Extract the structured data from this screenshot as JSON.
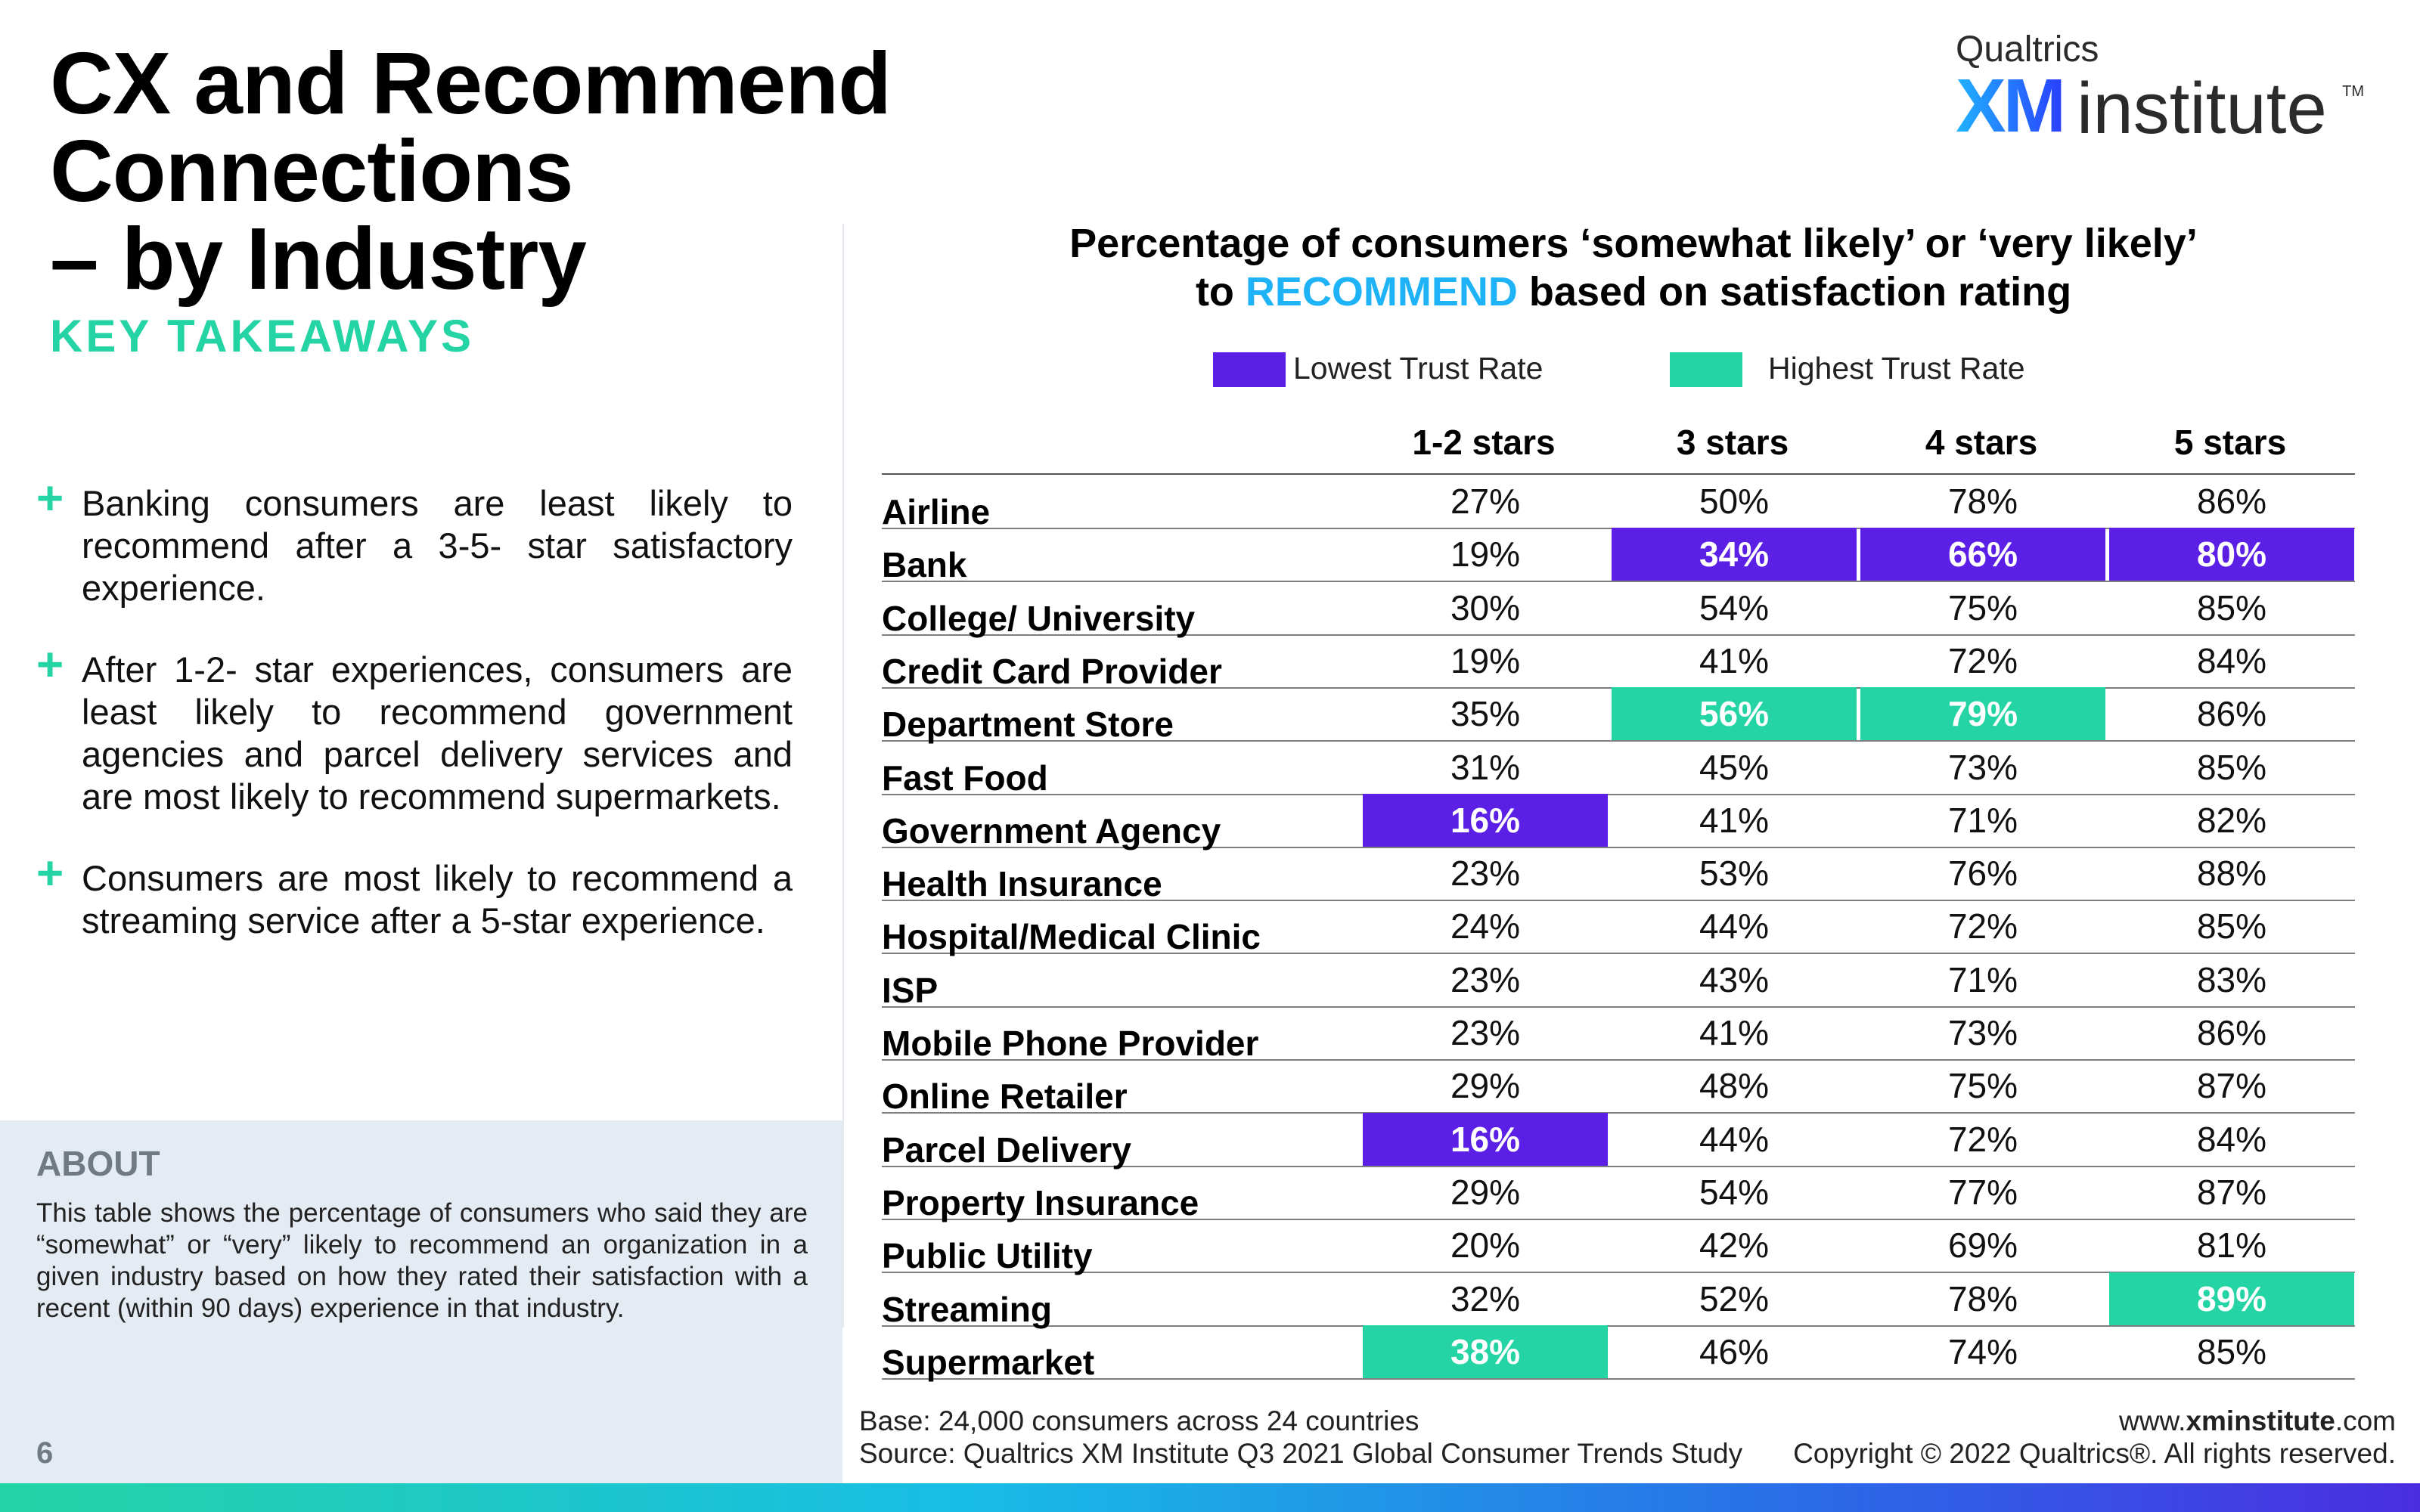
{
  "title": {
    "line1": "CX and Recommend Connections",
    "line2": "– by Industry"
  },
  "logo": {
    "top": "Qualtrics",
    "xm": "XM",
    "institute": "institute",
    "tm": "TM"
  },
  "key_takeaways": {
    "heading": "KEY TAKEAWAYS",
    "items": [
      "Banking consumers are least likely to recommend after a 3-5- star satisfactory experience.",
      "After 1-2- star experiences, consumers are least likely to recommend government agencies and parcel delivery services and are most likely to recommend supermarkets.",
      "Consumers are most likely to recommend a streaming service after a 5-star experience."
    ]
  },
  "about": {
    "heading": "ABOUT",
    "text": "This table shows the percentage of consumers who said they are “somewhat” or “very” likely to recommend an organization in a given industry based on how they rated their satisfaction with a recent (within 90 days) experience in that industry."
  },
  "page_number": "6",
  "colors": {
    "lowest": "#5b1fe6",
    "highest": "#24d4a4",
    "accent": "#1eb3f6"
  },
  "chart_data": {
    "type": "table",
    "title_line1": "Percentage of consumers ‘somewhat likely’ or ‘very likely’",
    "title_line2_pre": "to ",
    "title_line2_hl": "RECOMMEND",
    "title_line2_post": " based on satisfaction rating",
    "legend": [
      {
        "label": "Lowest Trust Rate",
        "kind": "low"
      },
      {
        "label": "Highest Trust Rate",
        "kind": "high"
      }
    ],
    "columns": [
      "1-2 stars",
      "3 stars",
      "4 stars",
      "5 stars"
    ],
    "rows": [
      {
        "label": "Airline",
        "values": [
          "27%",
          "50%",
          "78%",
          "86%"
        ],
        "hl": [
          null,
          null,
          null,
          null
        ]
      },
      {
        "label": "Bank",
        "values": [
          "19%",
          "34%",
          "66%",
          "80%"
        ],
        "hl": [
          null,
          "low",
          "low",
          "low"
        ]
      },
      {
        "label": "College/ University",
        "values": [
          "30%",
          "54%",
          "75%",
          "85%"
        ],
        "hl": [
          null,
          null,
          null,
          null
        ]
      },
      {
        "label": "Credit Card Provider",
        "values": [
          "19%",
          "41%",
          "72%",
          "84%"
        ],
        "hl": [
          null,
          null,
          null,
          null
        ]
      },
      {
        "label": "Department Store",
        "values": [
          "35%",
          "56%",
          "79%",
          "86%"
        ],
        "hl": [
          null,
          "high",
          "high",
          null
        ]
      },
      {
        "label": "Fast Food",
        "values": [
          "31%",
          "45%",
          "73%",
          "85%"
        ],
        "hl": [
          null,
          null,
          null,
          null
        ]
      },
      {
        "label": "Government Agency",
        "values": [
          "16%",
          "41%",
          "71%",
          "82%"
        ],
        "hl": [
          "low",
          null,
          null,
          null
        ]
      },
      {
        "label": "Health Insurance",
        "values": [
          "23%",
          "53%",
          "76%",
          "88%"
        ],
        "hl": [
          null,
          null,
          null,
          null
        ]
      },
      {
        "label": "Hospital/Medical Clinic",
        "values": [
          "24%",
          "44%",
          "72%",
          "85%"
        ],
        "hl": [
          null,
          null,
          null,
          null
        ]
      },
      {
        "label": "ISP",
        "values": [
          "23%",
          "43%",
          "71%",
          "83%"
        ],
        "hl": [
          null,
          null,
          null,
          null
        ]
      },
      {
        "label": "Mobile Phone Provider",
        "values": [
          "23%",
          "41%",
          "73%",
          "86%"
        ],
        "hl": [
          null,
          null,
          null,
          null
        ]
      },
      {
        "label": "Online Retailer",
        "values": [
          "29%",
          "48%",
          "75%",
          "87%"
        ],
        "hl": [
          null,
          null,
          null,
          null
        ]
      },
      {
        "label": "Parcel Delivery",
        "values": [
          "16%",
          "44%",
          "72%",
          "84%"
        ],
        "hl": [
          "low",
          null,
          null,
          null
        ]
      },
      {
        "label": "Property Insurance",
        "values": [
          "29%",
          "54%",
          "77%",
          "87%"
        ],
        "hl": [
          null,
          null,
          null,
          null
        ]
      },
      {
        "label": "Public Utility",
        "values": [
          "20%",
          "42%",
          "69%",
          "81%"
        ],
        "hl": [
          null,
          null,
          null,
          null
        ]
      },
      {
        "label": "Streaming",
        "values": [
          "32%",
          "52%",
          "78%",
          "89%"
        ],
        "hl": [
          null,
          null,
          null,
          "high"
        ]
      },
      {
        "label": "Supermarket",
        "values": [
          "38%",
          "46%",
          "74%",
          "85%"
        ],
        "hl": [
          "high",
          null,
          null,
          null
        ]
      }
    ]
  },
  "footer": {
    "base": "Base: 24,000 consumers across 24 countries",
    "source": "Source: Qualtrics XM Institute Q3 2021 Global Consumer Trends Study",
    "url_pre": "www.",
    "url_bold": "xminstitute",
    "url_post": ".com",
    "copyright": "Copyright © 2022 Qualtrics®. All rights reserved."
  }
}
